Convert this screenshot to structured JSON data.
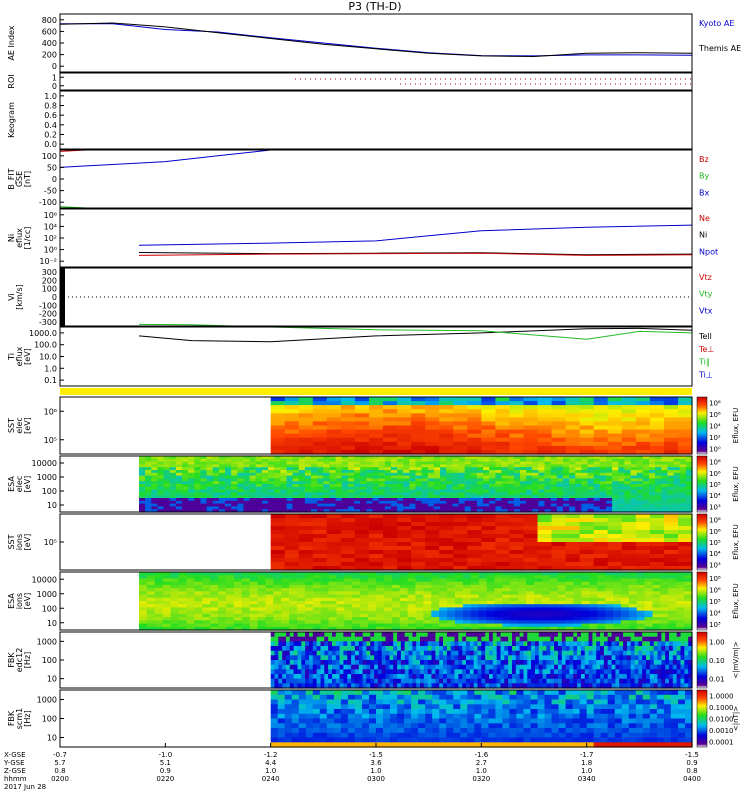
{
  "title": "P3 (TH-D)",
  "colors": {
    "kyoto": "#0000cc",
    "themis": "#000000",
    "red": "#cc0000",
    "green": "#22bb22",
    "blue": "#0000cc",
    "black": "#000000",
    "dotted": "#aa0000"
  },
  "panels": [
    {
      "id": "ae",
      "ylabel": [
        "AE Index"
      ],
      "ticks": [
        "800",
        "600",
        "400",
        "200",
        "0"
      ],
      "legend": [
        {
          "text": "Kyoto AE",
          "color": "#0000cc"
        },
        {
          "text": "Themis AE",
          "color": "#000000"
        }
      ]
    },
    {
      "id": "roi",
      "ylabel": [
        "ROI"
      ],
      "ticks": [
        "1",
        "0"
      ],
      "legend": []
    },
    {
      "id": "keogram",
      "ylabel": [
        "Keogram"
      ],
      "ticks": [
        "1.0",
        "0.8",
        "0.6",
        "0.4",
        "0.2",
        "0.0"
      ],
      "legend": []
    },
    {
      "id": "bfit",
      "ylabel": [
        "B_FIT",
        "GSE",
        "[nT]"
      ],
      "ticks": [
        "100",
        "50",
        "0",
        "-50",
        "-100"
      ],
      "legend": [
        {
          "text": "Bz",
          "color": "#cc0000"
        },
        {
          "text": "By",
          "color": "#22bb22"
        },
        {
          "text": "Bx",
          "color": "#0000cc"
        }
      ]
    },
    {
      "id": "ni",
      "ylabel": [
        "Ni",
        "eflux",
        "[1/cc]"
      ],
      "ticks": [
        "10⁶",
        "10⁴",
        "10²",
        "10⁰",
        "10⁻²"
      ],
      "legend": [
        {
          "text": "Ne",
          "color": "#cc0000"
        },
        {
          "text": "Ni",
          "color": "#000000"
        },
        {
          "text": "Npot",
          "color": "#0000cc"
        }
      ]
    },
    {
      "id": "vi",
      "ylabel": [
        "Vi",
        "[km/s]"
      ],
      "ticks": [
        "300",
        "200",
        "100",
        "0",
        "-100",
        "-200",
        "-300"
      ],
      "legend": [
        {
          "text": "Vtz",
          "color": "#cc0000"
        },
        {
          "text": "Vty",
          "color": "#22bb22"
        },
        {
          "text": "Vtx",
          "color": "#0000cc"
        }
      ]
    },
    {
      "id": "ti",
      "ylabel": [
        "Ti",
        "eflux",
        "[eV]"
      ],
      "ticks": [
        "1000.0",
        "100.0",
        "10.0",
        "1.0",
        "0.1"
      ],
      "legend": [
        {
          "text": "Tell",
          "color": "#000000"
        },
        {
          "text": "Te⊥",
          "color": "#cc0000"
        },
        {
          "text": "Ti∥",
          "color": "#22bb22"
        },
        {
          "text": "Ti⊥",
          "color": "#0000cc"
        }
      ]
    },
    {
      "id": "sst_e",
      "ylabel": [
        "SST",
        "elec",
        "[eV]"
      ],
      "ticks": [
        "10⁶",
        "10⁵"
      ]
    },
    {
      "id": "esa_e",
      "ylabel": [
        "ESA",
        "elec",
        "[eV]"
      ],
      "ticks": [
        "10000",
        "1000",
        "100",
        "10"
      ]
    },
    {
      "id": "sst_i",
      "ylabel": [
        "SST",
        "ions",
        "[eV]"
      ],
      "ticks": [
        "10⁵"
      ]
    },
    {
      "id": "esa_i",
      "ylabel": [
        "ESA",
        "ions",
        "[eV]"
      ],
      "ticks": [
        "10000",
        "1000",
        "100",
        "10"
      ]
    },
    {
      "id": "fbk_e",
      "ylabel": [
        "FBK",
        "edc12",
        "[Hz]"
      ],
      "ticks": [
        "1000",
        "100",
        "10"
      ]
    },
    {
      "id": "fbk_b",
      "ylabel": [
        "FBK",
        "scm1",
        "[Hz]"
      ],
      "ticks": [
        "1000",
        "100",
        "10"
      ]
    }
  ],
  "colorbars": [
    {
      "id": "cb1",
      "label": "Eflux, EFU",
      "ticks": [
        "10⁸",
        "10⁶",
        "10⁴",
        "10²",
        "10⁰"
      ]
    },
    {
      "id": "cb2",
      "label": "Eflux, EFU",
      "ticks": [
        "10⁸",
        "10⁶",
        "10⁵",
        "10⁴",
        "10³"
      ]
    },
    {
      "id": "cb3",
      "label": "Eflux, EFU",
      "ticks": [
        "10⁸",
        "10⁶",
        "10⁵",
        "10⁴",
        "10³"
      ]
    },
    {
      "id": "cb4",
      "label": "Eflux, EFU",
      "ticks": [
        "10⁸",
        "10⁶",
        "10⁵",
        "10⁴",
        "10³"
      ]
    },
    {
      "id": "cb5",
      "label": "<|mV/m|>",
      "ticks": [
        "1.00",
        "0.10",
        "0.01"
      ]
    },
    {
      "id": "cb6",
      "label": "<|nT|>",
      "ticks": [
        "1.0000",
        "0.1000",
        "0.0100",
        "0.0010",
        "0.0001"
      ]
    }
  ],
  "xaxis": {
    "row_labels": [
      "X-GSE",
      "Y-GSE",
      "Z-GSE",
      "hhmm",
      "2017 Jun 28"
    ],
    "columns": [
      [
        "-0.7",
        "5.7",
        "0.8",
        "0200"
      ],
      [
        "-1.0",
        "5.1",
        "0.9",
        "0220"
      ],
      [
        "-1.2",
        "4.4",
        "1.0",
        "0240"
      ],
      [
        "-1.5",
        "3.6",
        "1.0",
        "0300"
      ],
      [
        "-1.6",
        "2.7",
        "1.0",
        "0320"
      ],
      [
        "-1.7",
        "1.8",
        "1.0",
        "0340"
      ],
      [
        "-1.5",
        "0.9",
        "0.8",
        "0400"
      ]
    ]
  },
  "chart_data": [
    {
      "type": "line",
      "panel": "AE Index",
      "x_unit": "UT hhmm",
      "xlim": [
        "0200",
        "0400"
      ],
      "ylim": [
        -100,
        800
      ],
      "series": [
        {
          "name": "Kyoto AE",
          "x": [
            "0200",
            "0210",
            "0220",
            "0230",
            "0240",
            "0250",
            "0300",
            "0310",
            "0320",
            "0330",
            "0340",
            "0350",
            "0400"
          ],
          "values": [
            650,
            650,
            560,
            520,
            430,
            350,
            270,
            200,
            155,
            150,
            165,
            165,
            160
          ]
        },
        {
          "name": "Themis AE",
          "x": [
            "0200",
            "0210",
            "0220",
            "0230",
            "0240",
            "0250",
            "0300",
            "0310",
            "0320",
            "0330",
            "0340",
            "0350",
            "0400"
          ],
          "values": [
            640,
            660,
            600,
            510,
            420,
            330,
            260,
            190,
            150,
            140,
            190,
            200,
            190
          ]
        }
      ]
    },
    {
      "type": "line",
      "panel": "B_FIT GSE [nT]",
      "xlim": [
        "0200",
        "0400"
      ],
      "ylim": [
        -100,
        100
      ],
      "series": [
        {
          "name": "Bx",
          "x": [
            "0200",
            "0205",
            "0210",
            "0220",
            "0230",
            "0240"
          ],
          "values": [
            40,
            45,
            50,
            60,
            80,
            100
          ]
        },
        {
          "name": "Bz",
          "x": [
            "0200",
            "0205"
          ],
          "values": [
            95,
            100
          ]
        },
        {
          "name": "By",
          "x": [
            "0200",
            "0205",
            "0210"
          ],
          "values": [
            -95,
            -100,
            -100
          ]
        }
      ]
    },
    {
      "type": "line",
      "panel": "Ni [1/cc]",
      "xlim": [
        "0200",
        "0400"
      ],
      "yscale": "log",
      "ylim": [
        0.01,
        1000000
      ],
      "series": [
        {
          "name": "Npot",
          "x": [
            "0215",
            "0240",
            "0300",
            "0310",
            "0320",
            "0340",
            "0400"
          ],
          "values": [
            10,
            20,
            40,
            200,
            1000,
            3000,
            6000
          ]
        },
        {
          "name": "Ni",
          "x": [
            "0215",
            "0240",
            "0300",
            "0320",
            "0340",
            "0400"
          ],
          "values": [
            1,
            0.7,
            0.8,
            0.9,
            0.5,
            0.6
          ]
        },
        {
          "name": "Ne",
          "x": [
            "0215",
            "0240",
            "0300",
            "0320",
            "0340",
            "0400"
          ],
          "values": [
            0.4,
            0.6,
            0.7,
            0.8,
            0.4,
            0.5
          ]
        }
      ]
    },
    {
      "type": "line",
      "panel": "Ti [eV]",
      "xlim": [
        "0200",
        "0400"
      ],
      "yscale": "log",
      "ylim": [
        0.1,
        1000
      ],
      "series": [
        {
          "name": "Tell",
          "x": [
            "0215",
            "0225",
            "0240",
            "0300",
            "0320",
            "0340",
            "0350",
            "0400"
          ],
          "values": [
            250,
            120,
            100,
            250,
            400,
            750,
            800,
            600
          ]
        },
        {
          "name": "Ti∥",
          "x": [
            "0215",
            "0225",
            "0240",
            "0300",
            "0320",
            "0340",
            "0350",
            "0400"
          ],
          "values": [
            1500,
            1400,
            1000,
            650,
            550,
            150,
            500,
            400
          ]
        }
      ]
    },
    {
      "type": "heatmap",
      "panel": "SST elec",
      "xlim": [
        "0200",
        "0400"
      ],
      "ylim_eV": [
        30000,
        2000000
      ],
      "colorbar": "Eflux, EFU"
    },
    {
      "type": "heatmap",
      "panel": "ESA elec",
      "xlim": [
        "0200",
        "0400"
      ],
      "ylim_eV": [
        10,
        30000
      ],
      "colorbar": "Eflux, EFU"
    },
    {
      "type": "heatmap",
      "panel": "SST ions",
      "xlim": [
        "0200",
        "0400"
      ],
      "ylim_eV": [
        30000,
        2000000
      ],
      "colorbar": "Eflux, EFU"
    },
    {
      "type": "heatmap",
      "panel": "ESA ions",
      "xlim": [
        "0200",
        "0400"
      ],
      "ylim_eV": [
        5,
        25000
      ],
      "colorbar": "Eflux, EFU"
    },
    {
      "type": "heatmap",
      "panel": "FBK edc12",
      "xlim": [
        "0200",
        "0400"
      ],
      "ylim_Hz": [
        2,
        2000
      ],
      "colorbar": "<|mV/m|>"
    },
    {
      "type": "heatmap",
      "panel": "FBK scm1",
      "xlim": [
        "0200",
        "0400"
      ],
      "ylim_Hz": [
        2,
        2000
      ],
      "colorbar": "<|nT|>"
    }
  ]
}
